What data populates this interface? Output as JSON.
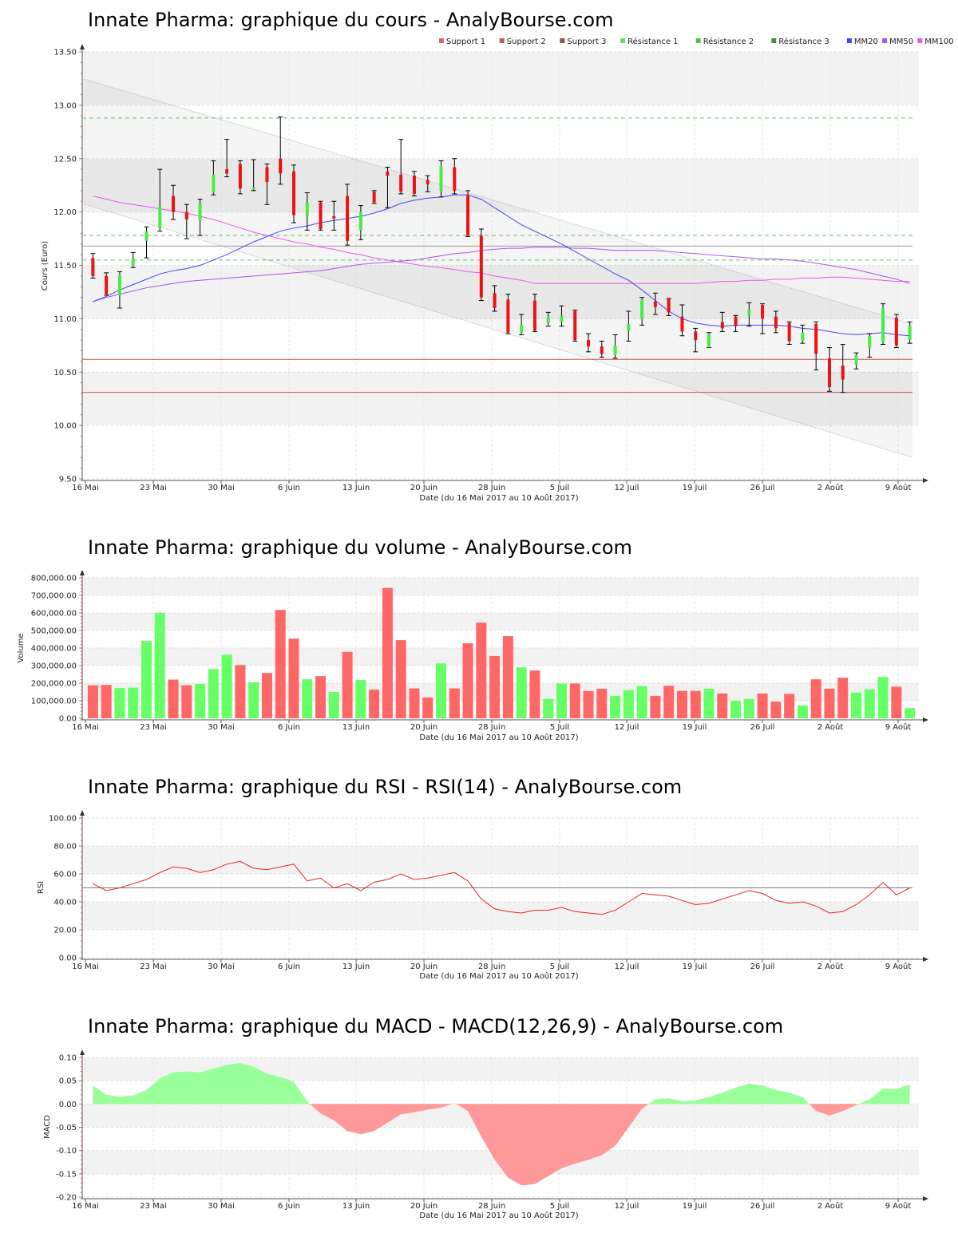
{
  "chart_data": [
    {
      "type": "candlestick",
      "title": "Innate Pharma: graphique du cours - AnalyBourse.com",
      "xlabel": "Date (du 16 Mai 2017 au 10 Août 2017)",
      "ylabel": "Cours (Euro)",
      "ylim": [
        9.5,
        13.5
      ],
      "yticks": [
        "9.50",
        "10.00",
        "10.50",
        "11.00",
        "11.50",
        "12.00",
        "12.50",
        "13.00",
        "13.50"
      ],
      "xticks": [
        "16 Mai",
        "23 Mai",
        "30 Mai",
        "6 Juin",
        "13 Juin",
        "20 Juin",
        "28 Juin",
        "5 Juil",
        "12 Juil",
        "19 Juil",
        "26 Juil",
        "2 Août",
        "9 Août"
      ],
      "legend": [
        {
          "name": "Support 1",
          "color": "#e06666"
        },
        {
          "name": "Support 2",
          "color": "#b06060"
        },
        {
          "name": "Support 3",
          "color": "#905050"
        },
        {
          "name": "Résistance 1",
          "color": "#66dd66"
        },
        {
          "name": "Résistance 2",
          "color": "#55bb55"
        },
        {
          "name": "Résistance 3",
          "color": "#448844"
        },
        {
          "name": "MM20",
          "color": "#4444ff"
        },
        {
          "name": "MM50",
          "color": "#aa55ee"
        },
        {
          "name": "MM100",
          "color": "#ee55ee"
        }
      ],
      "levels": {
        "support_1": 10.62,
        "support_2": 10.31,
        "resistance_1": 11.55,
        "resistance_2": 11.78,
        "resistance_3": 12.88,
        "pivot_line": 11.68
      },
      "channel": {
        "upper": [
          13.25,
          10.95
        ],
        "lower": [
          12.08,
          9.7
        ]
      },
      "candles": [
        {
          "o": 11.57,
          "h": 11.61,
          "l": 11.38,
          "c": 11.4
        },
        {
          "o": 11.4,
          "h": 11.43,
          "l": 11.22,
          "c": 11.23
        },
        {
          "o": 11.22,
          "h": 11.44,
          "l": 11.1,
          "c": 11.41
        },
        {
          "o": 11.5,
          "h": 11.62,
          "l": 11.48,
          "c": 11.57
        },
        {
          "o": 11.73,
          "h": 11.86,
          "l": 11.57,
          "c": 11.82
        },
        {
          "o": 11.85,
          "h": 12.4,
          "l": 11.82,
          "c": 12.05
        },
        {
          "o": 12.15,
          "h": 12.25,
          "l": 11.93,
          "c": 12.0
        },
        {
          "o": 12.0,
          "h": 12.07,
          "l": 11.75,
          "c": 11.93
        },
        {
          "o": 11.92,
          "h": 12.12,
          "l": 11.78,
          "c": 12.08
        },
        {
          "o": 12.18,
          "h": 12.48,
          "l": 12.16,
          "c": 12.35
        },
        {
          "o": 12.4,
          "h": 12.68,
          "l": 12.33,
          "c": 12.36
        },
        {
          "o": 12.45,
          "h": 12.48,
          "l": 12.17,
          "c": 12.22
        },
        {
          "o": 12.21,
          "h": 12.49,
          "l": 12.2,
          "c": 12.23
        },
        {
          "o": 12.42,
          "h": 12.45,
          "l": 12.07,
          "c": 12.28
        },
        {
          "o": 12.5,
          "h": 12.89,
          "l": 12.26,
          "c": 12.36
        },
        {
          "o": 12.38,
          "h": 12.44,
          "l": 11.9,
          "c": 11.97
        },
        {
          "o": 11.96,
          "h": 12.18,
          "l": 11.83,
          "c": 12.09
        },
        {
          "o": 12.09,
          "h": 12.1,
          "l": 11.83,
          "c": 11.84
        },
        {
          "o": 11.96,
          "h": 12.1,
          "l": 11.83,
          "c": 11.94
        },
        {
          "o": 12.15,
          "h": 12.26,
          "l": 11.69,
          "c": 11.73
        },
        {
          "o": 11.83,
          "h": 12.06,
          "l": 11.74,
          "c": 12.0
        },
        {
          "o": 12.19,
          "h": 12.2,
          "l": 12.08,
          "c": 12.09
        },
        {
          "o": 12.38,
          "h": 12.42,
          "l": 12.04,
          "c": 12.34
        },
        {
          "o": 12.35,
          "h": 12.68,
          "l": 12.17,
          "c": 12.19
        },
        {
          "o": 12.34,
          "h": 12.38,
          "l": 12.15,
          "c": 12.17
        },
        {
          "o": 12.3,
          "h": 12.34,
          "l": 12.19,
          "c": 12.26
        },
        {
          "o": 12.2,
          "h": 12.48,
          "l": 12.14,
          "c": 12.43
        },
        {
          "o": 12.42,
          "h": 12.5,
          "l": 12.17,
          "c": 12.2
        },
        {
          "o": 12.16,
          "h": 12.2,
          "l": 11.77,
          "c": 11.78
        },
        {
          "o": 11.78,
          "h": 11.84,
          "l": 11.17,
          "c": 11.2
        },
        {
          "o": 11.24,
          "h": 11.31,
          "l": 11.07,
          "c": 11.1
        },
        {
          "o": 11.18,
          "h": 11.23,
          "l": 10.86,
          "c": 10.87
        },
        {
          "o": 10.87,
          "h": 11.04,
          "l": 10.85,
          "c": 10.94
        },
        {
          "o": 11.17,
          "h": 11.23,
          "l": 10.88,
          "c": 10.89
        },
        {
          "o": 10.96,
          "h": 11.06,
          "l": 10.93,
          "c": 11.02
        },
        {
          "o": 10.97,
          "h": 11.12,
          "l": 10.93,
          "c": 11.03
        },
        {
          "o": 11.07,
          "h": 11.08,
          "l": 10.79,
          "c": 10.8
        },
        {
          "o": 10.8,
          "h": 10.86,
          "l": 10.69,
          "c": 10.74
        },
        {
          "o": 10.74,
          "h": 10.79,
          "l": 10.64,
          "c": 10.67
        },
        {
          "o": 10.66,
          "h": 10.85,
          "l": 10.63,
          "c": 10.75
        },
        {
          "o": 10.89,
          "h": 11.07,
          "l": 10.79,
          "c": 10.95
        },
        {
          "o": 11.0,
          "h": 11.2,
          "l": 10.94,
          "c": 11.18
        },
        {
          "o": 11.16,
          "h": 11.24,
          "l": 11.04,
          "c": 11.11
        },
        {
          "o": 11.19,
          "h": 11.19,
          "l": 11.03,
          "c": 11.06
        },
        {
          "o": 11.02,
          "h": 11.13,
          "l": 10.84,
          "c": 10.88
        },
        {
          "o": 10.88,
          "h": 10.91,
          "l": 10.69,
          "c": 10.8
        },
        {
          "o": 10.73,
          "h": 10.87,
          "l": 10.73,
          "c": 10.86
        },
        {
          "o": 10.97,
          "h": 11.06,
          "l": 10.88,
          "c": 10.91
        },
        {
          "o": 11.02,
          "h": 11.03,
          "l": 10.88,
          "c": 10.93
        },
        {
          "o": 11.03,
          "h": 11.15,
          "l": 10.93,
          "c": 11.08
        },
        {
          "o": 11.13,
          "h": 11.14,
          "l": 10.86,
          "c": 11.0
        },
        {
          "o": 11.02,
          "h": 11.07,
          "l": 10.87,
          "c": 10.91
        },
        {
          "o": 10.96,
          "h": 10.97,
          "l": 10.76,
          "c": 10.79
        },
        {
          "o": 10.79,
          "h": 10.94,
          "l": 10.77,
          "c": 10.87
        },
        {
          "o": 10.95,
          "h": 10.97,
          "l": 10.52,
          "c": 10.67
        },
        {
          "o": 10.63,
          "h": 10.73,
          "l": 10.32,
          "c": 10.36
        },
        {
          "o": 10.56,
          "h": 10.76,
          "l": 10.31,
          "c": 10.43
        },
        {
          "o": 10.57,
          "h": 10.68,
          "l": 10.53,
          "c": 10.66
        },
        {
          "o": 10.73,
          "h": 10.86,
          "l": 10.64,
          "c": 10.84
        },
        {
          "o": 10.78,
          "h": 11.14,
          "l": 10.76,
          "c": 11.1
        },
        {
          "o": 11.01,
          "h": 11.04,
          "l": 10.73,
          "c": 10.75
        },
        {
          "o": 10.8,
          "h": 10.97,
          "l": 10.77,
          "c": 10.94
        }
      ],
      "mm20": [
        11.16,
        11.21,
        11.27,
        11.32,
        11.37,
        11.42,
        11.45,
        11.47,
        11.5,
        11.55,
        11.6,
        11.66,
        11.72,
        11.77,
        11.82,
        11.85,
        11.87,
        11.9,
        11.92,
        11.94,
        11.96,
        11.99,
        12.03,
        12.08,
        12.11,
        12.13,
        12.14,
        12.16,
        12.16,
        12.12,
        12.04,
        11.96,
        11.88,
        11.82,
        11.76,
        11.7,
        11.63,
        11.56,
        11.49,
        11.42,
        11.36,
        11.27,
        11.17,
        11.07,
        11.0,
        10.96,
        10.94,
        10.93,
        10.94,
        10.94,
        10.94,
        10.94,
        10.93,
        10.91,
        10.9,
        10.88,
        10.86,
        10.85,
        10.86,
        10.87,
        10.85,
        10.84
      ],
      "mm50": [
        11.16,
        11.2,
        11.23,
        11.26,
        11.29,
        11.31,
        11.33,
        11.35,
        11.36,
        11.37,
        11.38,
        11.39,
        11.4,
        11.41,
        11.42,
        11.43,
        11.44,
        11.45,
        11.47,
        11.49,
        11.51,
        11.52,
        11.53,
        11.54,
        11.55,
        11.57,
        11.59,
        11.61,
        11.62,
        11.64,
        11.65,
        11.66,
        11.66,
        11.67,
        11.67,
        11.67,
        11.66,
        11.66,
        11.65,
        11.64,
        11.64,
        11.64,
        11.64,
        11.63,
        11.62,
        11.61,
        11.6,
        11.59,
        11.58,
        11.57,
        11.56,
        11.56,
        11.55,
        11.54,
        11.52,
        11.5,
        11.48,
        11.46,
        11.43,
        11.4,
        11.37,
        11.33
      ],
      "mm100": [
        12.15,
        12.12,
        12.09,
        12.07,
        12.05,
        12.03,
        12.01,
        11.99,
        11.96,
        11.93,
        11.89,
        11.85,
        11.81,
        11.78,
        11.75,
        11.72,
        11.7,
        11.67,
        11.65,
        11.62,
        11.6,
        11.57,
        11.55,
        11.53,
        11.51,
        11.49,
        11.48,
        11.46,
        11.44,
        11.43,
        11.4,
        11.38,
        11.36,
        11.33,
        11.33,
        11.33,
        11.33,
        11.33,
        11.33,
        11.33,
        11.33,
        11.33,
        11.33,
        11.33,
        11.33,
        11.33,
        11.34,
        11.35,
        11.35,
        11.36,
        11.36,
        11.37,
        11.37,
        11.38,
        11.38,
        11.39,
        11.39,
        11.38,
        11.37,
        11.36,
        11.35,
        11.35
      ]
    },
    {
      "type": "bar",
      "title": "Innate Pharma: graphique du volume - AnalyBourse.com",
      "xlabel": "Date (du 16 Mai 2017 au 10 Août 2017)",
      "ylabel": "Volume",
      "ylim": [
        0,
        800000
      ],
      "yticks": [
        "0.00",
        "100,000.00",
        "200,000.00",
        "300,000.00",
        "400,000.00",
        "500,000.00",
        "600,000.00",
        "700,000.00",
        "800,000.00"
      ],
      "xticks": [
        "16 Mai",
        "23 Mai",
        "30 Mai",
        "6 Juin",
        "13 Juin",
        "20 Juin",
        "28 Juin",
        "5 Juil",
        "12 Juil",
        "19 Juil",
        "26 Juil",
        "2 Août",
        "9 Août"
      ],
      "values": [
        188000,
        190000,
        172000,
        175000,
        440000,
        600000,
        220000,
        188000,
        195000,
        280000,
        362000,
        303000,
        205000,
        258000,
        617000,
        454000,
        222000,
        240000,
        150000,
        378000,
        218000,
        163000,
        742000,
        445000,
        170000,
        118000,
        313000,
        170000,
        427000,
        545000,
        355000,
        468000,
        290000,
        272000,
        110000,
        198000,
        198000,
        155000,
        168000,
        128000,
        160000,
        183000,
        128000,
        185000,
        156000,
        156000,
        168000,
        141000,
        100000,
        110000,
        141000,
        95000,
        139000,
        73000,
        222000,
        168000,
        231000,
        147000,
        165000,
        235000,
        180000,
        58000
      ],
      "colors": [
        "down",
        "down",
        "up",
        "up",
        "up",
        "up",
        "down",
        "down",
        "up",
        "up",
        "up",
        "down",
        "up",
        "down",
        "down",
        "down",
        "up",
        "down",
        "up",
        "down",
        "up",
        "down",
        "down",
        "down",
        "down",
        "down",
        "up",
        "down",
        "down",
        "down",
        "down",
        "down",
        "up",
        "down",
        "up",
        "up",
        "down",
        "down",
        "down",
        "up",
        "up",
        "up",
        "down",
        "down",
        "down",
        "down",
        "up",
        "down",
        "up",
        "up",
        "down",
        "down",
        "down",
        "up",
        "down",
        "down",
        "down",
        "up",
        "up",
        "up",
        "down",
        "up"
      ]
    },
    {
      "type": "line",
      "title": "Innate Pharma: graphique du RSI - RSI(14) - AnalyBourse.com",
      "xlabel": "Date (du 16 Mai 2017 au 10 Août 2017)",
      "ylabel": "RSI",
      "ylim": [
        0,
        100
      ],
      "yticks": [
        "0.00",
        "20.00",
        "40.00",
        "60.00",
        "80.00",
        "100.00"
      ],
      "xticks": [
        "16 Mai",
        "23 Mai",
        "30 Mai",
        "6 Juin",
        "13 Juin",
        "20 Juin",
        "28 Juin",
        "5 Juil",
        "12 Juil",
        "19 Juil",
        "26 Juil",
        "2 Août",
        "9 Août"
      ],
      "reference": 50,
      "values": [
        53,
        48,
        50,
        53,
        56,
        61,
        65,
        64,
        61,
        63,
        67,
        69,
        64,
        63,
        65,
        67,
        55,
        57,
        50,
        53,
        48,
        54,
        56,
        60,
        56,
        57,
        59,
        61,
        55,
        42,
        35,
        33,
        32,
        34,
        34,
        36,
        33,
        32,
        31,
        34,
        40,
        46,
        45,
        44,
        41,
        38,
        39,
        42,
        45,
        48,
        46,
        41,
        39,
        40,
        37,
        32,
        33,
        38,
        45,
        54,
        45,
        50
      ]
    },
    {
      "type": "area",
      "title": "Innate Pharma: graphique du MACD - MACD(12,26,9) - AnalyBourse.com",
      "xlabel": "Date (du 16 Mai 2017 au 10 Août 2017)",
      "ylabel": "MACD",
      "ylim": [
        -0.2,
        0.1
      ],
      "yticks": [
        "-0.20",
        "-0.15",
        "-0.10",
        "-0.05",
        "0.00",
        "0.05",
        "0.10"
      ],
      "xticks": [
        "16 Mai",
        "23 Mai",
        "30 Mai",
        "6 Juin",
        "13 Juin",
        "20 Juin",
        "28 Juin",
        "5 Juil",
        "12 Juil",
        "19 Juil",
        "26 Juil",
        "2 Août",
        "9 Août"
      ],
      "values": [
        0.04,
        0.02,
        0.015,
        0.018,
        0.03,
        0.055,
        0.068,
        0.07,
        0.068,
        0.076,
        0.084,
        0.088,
        0.08,
        0.065,
        0.058,
        0.048,
        0.005,
        -0.02,
        -0.035,
        -0.058,
        -0.065,
        -0.058,
        -0.04,
        -0.022,
        -0.018,
        -0.012,
        -0.008,
        0.002,
        -0.015,
        -0.07,
        -0.12,
        -0.158,
        -0.175,
        -0.172,
        -0.155,
        -0.138,
        -0.128,
        -0.12,
        -0.11,
        -0.09,
        -0.05,
        -0.01,
        0.01,
        0.012,
        0.006,
        0.008,
        0.015,
        0.024,
        0.035,
        0.044,
        0.04,
        0.03,
        0.024,
        0.015,
        -0.015,
        -0.025,
        -0.015,
        -0.002,
        0.01,
        0.033,
        0.032,
        0.042
      ]
    }
  ]
}
